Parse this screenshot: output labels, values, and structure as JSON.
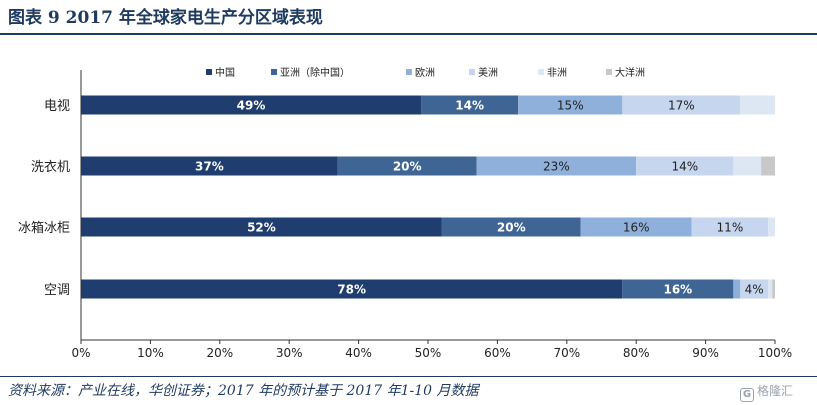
{
  "header": {
    "title": "图表 9   2017 年全球家电生产分区域表现"
  },
  "footer": {
    "source": "资料来源：产业在线，华创证券；2017 年的预计基于 2017 年1-10 月数据",
    "watermark": "格隆汇"
  },
  "chart_data": {
    "type": "bar",
    "orientation": "horizontal",
    "stacked": true,
    "percent": true,
    "categories": [
      "电视",
      "洗衣机",
      "冰箱冰柜",
      "空调"
    ],
    "series": [
      {
        "name": "中国",
        "color": "#1f3d6e",
        "values": [
          49,
          37,
          52,
          78
        ],
        "labels": [
          "49%",
          "37%",
          "52%",
          "78%"
        ],
        "label_color": "#ffffff"
      },
      {
        "name": "亚洲（除中国）",
        "color": "#3f6595",
        "values": [
          14,
          20,
          20,
          16
        ],
        "labels": [
          "14%",
          "20%",
          "20%",
          "16%"
        ],
        "label_color": "#ffffff"
      },
      {
        "name": "欧洲",
        "color": "#8fb0da",
        "values": [
          15,
          23,
          16,
          1
        ],
        "labels": [
          "15%",
          "23%",
          "16%",
          ""
        ],
        "label_color": "#222222"
      },
      {
        "name": "美洲",
        "color": "#c5d6ee",
        "values": [
          17,
          14,
          11,
          4
        ],
        "labels": [
          "17%",
          "14%",
          "11%",
          "4%"
        ],
        "label_color": "#222222"
      },
      {
        "name": "非洲",
        "color": "#dde6f3",
        "values": [
          5,
          4,
          1,
          0.6
        ],
        "labels": [
          "",
          "",
          "",
          ""
        ],
        "label_color": "#222222"
      },
      {
        "name": "大洋洲",
        "color": "#c8c8c8",
        "values": [
          0,
          2,
          0,
          0.4
        ],
        "labels": [
          "",
          "",
          "",
          ""
        ],
        "label_color": "#222222"
      }
    ],
    "xlim": [
      0,
      100
    ],
    "xticks": [
      "0%",
      "10%",
      "20%",
      "30%",
      "40%",
      "50%",
      "60%",
      "70%",
      "80%",
      "90%",
      "100%"
    ],
    "legend_position": "top",
    "grid": false
  }
}
